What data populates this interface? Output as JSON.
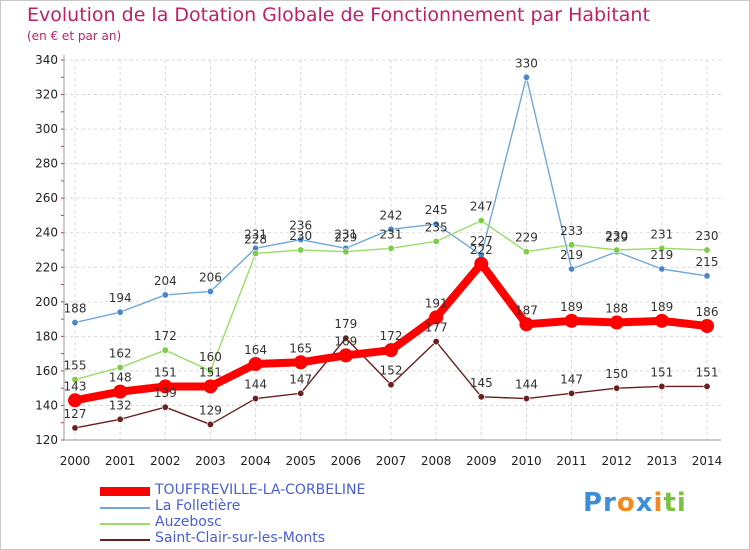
{
  "title": "Evolution de la Dotation Globale de Fonctionnement par Habitant",
  "subtitle": "(en € et par an)",
  "logo": {
    "parts": [
      {
        "text": "Pr",
        "color": "#3a8fd8"
      },
      {
        "text": "o",
        "color": "#f08a1c"
      },
      {
        "text": "x",
        "color": "#3a8fd8"
      },
      {
        "text": "i",
        "color": "#f08a1c"
      },
      {
        "text": "ti",
        "color": "#7cc043"
      }
    ]
  },
  "chart_data": {
    "type": "line",
    "categories": [
      "2000",
      "2001",
      "2002",
      "2003",
      "2004",
      "2005",
      "2006",
      "2007",
      "2008",
      "2009",
      "2010",
      "2011",
      "2012",
      "2013",
      "2014"
    ],
    "ylim": [
      120,
      340
    ],
    "yticks": [
      120,
      140,
      160,
      180,
      200,
      220,
      240,
      260,
      280,
      300,
      320,
      340
    ],
    "grid": true,
    "legend_position": "bottom-left",
    "series": [
      {
        "name": "TOUFFREVILLE-LA-CORBELINE",
        "color": "#ff0000",
        "marker_color": "#ff0000",
        "values": [
          143,
          148,
          151,
          151,
          164,
          165,
          169,
          172,
          191,
          222,
          187,
          189,
          188,
          189,
          186
        ],
        "thick": true
      },
      {
        "name": "La Folletière",
        "color": "#6fa8dc",
        "marker_color": "#4a86c8",
        "values": [
          188,
          194,
          204,
          206,
          231,
          236,
          231,
          242,
          245,
          227,
          330,
          219,
          229,
          219,
          215
        ],
        "thick": false
      },
      {
        "name": "Auzebosc",
        "color": "#99dd66",
        "marker_color": "#7ccc44",
        "values": [
          155,
          162,
          172,
          160,
          228,
          230,
          229,
          231,
          235,
          247,
          229,
          233,
          230,
          231,
          230
        ],
        "thick": false
      },
      {
        "name": "Saint-Clair-sur-les-Monts",
        "color": "#6b1f1f",
        "marker_color": "#6b1f1f",
        "values": [
          127,
          132,
          139,
          129,
          144,
          147,
          179,
          152,
          177,
          145,
          144,
          147,
          150,
          151,
          151
        ],
        "thick": false
      }
    ]
  }
}
